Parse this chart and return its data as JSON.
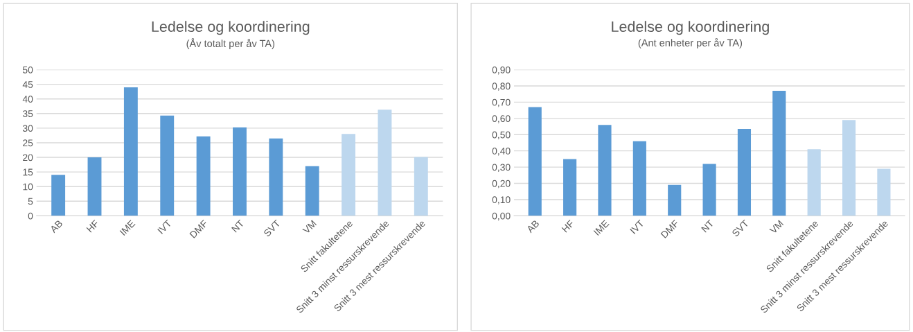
{
  "chart_data": [
    {
      "type": "bar",
      "title": "Ledelse og koordinering",
      "subtitle": "(Åv totalt per åv TA)",
      "categories": [
        "AB",
        "HF",
        "IME",
        "IVT",
        "DMF",
        "NT",
        "SVT",
        "VM",
        "Snitt fakultetene",
        "Snitt 3 minst ressurskrevende",
        "Snitt 3 mest ressurskrevende"
      ],
      "values": [
        14.0,
        20.0,
        44.0,
        34.3,
        27.2,
        30.3,
        26.5,
        17.0,
        28.0,
        36.3,
        20.1
      ],
      "colors": [
        "#5b9bd5",
        "#5b9bd5",
        "#5b9bd5",
        "#5b9bd5",
        "#5b9bd5",
        "#5b9bd5",
        "#5b9bd5",
        "#5b9bd5",
        "#bdd7ee",
        "#bdd7ee",
        "#bdd7ee"
      ],
      "ylim": [
        0,
        50
      ],
      "yticks": [
        0,
        5,
        10,
        15,
        20,
        25,
        30,
        35,
        40,
        45,
        50
      ],
      "grid": "y"
    },
    {
      "type": "bar",
      "title": "Ledelse og koordinering",
      "subtitle": "(Ant enheter per åv TA)",
      "categories": [
        "AB",
        "HF",
        "IME",
        "IVT",
        "DMF",
        "NT",
        "SVT",
        "VM",
        "Snitt fakultetene",
        "Snitt 3 minst ressurskrevende",
        "Snitt 3 mest ressurskrevende"
      ],
      "values": [
        0.67,
        0.35,
        0.56,
        0.46,
        0.19,
        0.32,
        0.535,
        0.77,
        0.41,
        0.59,
        0.29
      ],
      "colors": [
        "#5b9bd5",
        "#5b9bd5",
        "#5b9bd5",
        "#5b9bd5",
        "#5b9bd5",
        "#5b9bd5",
        "#5b9bd5",
        "#5b9bd5",
        "#bdd7ee",
        "#bdd7ee",
        "#bdd7ee"
      ],
      "ylim": [
        0,
        0.9
      ],
      "yticks": [
        {
          "value": 0,
          "label": "0,00"
        },
        {
          "value": 0.1,
          "label": "0,10"
        },
        {
          "value": 0.2,
          "label": "0,20"
        },
        {
          "value": 0.3,
          "label": "0,30"
        },
        {
          "value": 0.4,
          "label": "0,40"
        },
        {
          "value": 0.5,
          "label": "0,50"
        },
        {
          "value": 0.6,
          "label": "0,60"
        },
        {
          "value": 0.7,
          "label": "0,70"
        },
        {
          "value": 0.8,
          "label": "0,80"
        },
        {
          "value": 0.9,
          "label": "0,90"
        }
      ],
      "grid": "y"
    }
  ]
}
